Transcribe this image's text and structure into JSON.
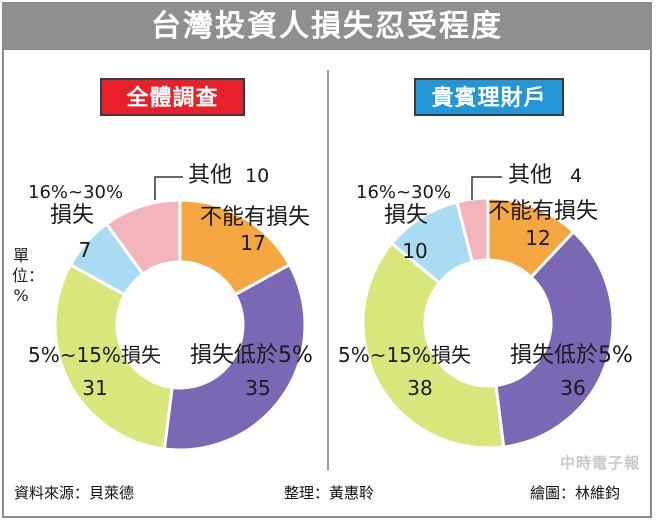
{
  "title": "台灣投資人損失忍受程度",
  "unit_label": "單位：%",
  "footer": {
    "source": "資料來源：貝萊德",
    "editor": "整理：黃惠聆",
    "artist": "繪圖：林維鈞"
  },
  "watermark": "中時電子報",
  "chart_data": [
    {
      "type": "pie",
      "title": "全體調查",
      "title_color": "#e8202a",
      "slices": [
        {
          "label": "不能有損失",
          "value": 17,
          "color": "#f4a640"
        },
        {
          "label": "損失低於5%",
          "value": 35,
          "color": "#7b68b5"
        },
        {
          "label": "5%~15%損失",
          "value": 31,
          "color": "#d9e67c"
        },
        {
          "label": "16%~30%損失",
          "value": 7,
          "color": "#a9dcf2"
        },
        {
          "label": "其他",
          "value": 10,
          "color": "#f4b4bd"
        }
      ]
    },
    {
      "type": "pie",
      "title": "貴賓理財戶",
      "title_color": "#2396d8",
      "slices": [
        {
          "label": "不能有損失",
          "value": 12,
          "color": "#f4a640"
        },
        {
          "label": "損失低於5%",
          "value": 36,
          "color": "#7b68b5"
        },
        {
          "label": "5%~15%損失",
          "value": 38,
          "color": "#d9e67c"
        },
        {
          "label": "16%~30%損失",
          "value": 10,
          "color": "#a9dcf2"
        },
        {
          "label": "其他",
          "value": 4,
          "color": "#f4b4bd"
        }
      ]
    }
  ]
}
